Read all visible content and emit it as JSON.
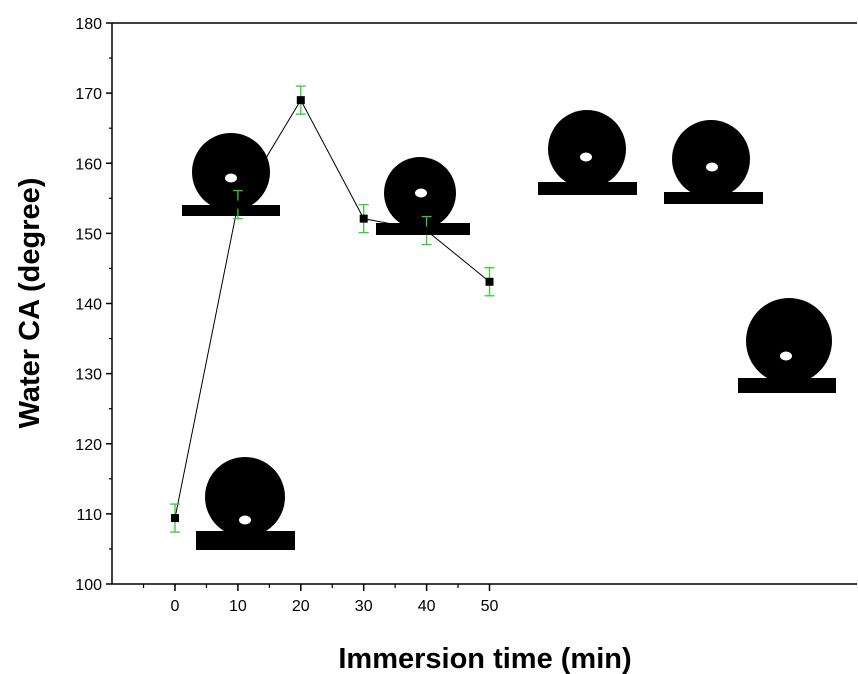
{
  "chart_data": {
    "type": "scatter",
    "title": "",
    "xlabel": "Immersion time (min)",
    "ylabel": "Water CA (degree)",
    "xlim": [
      -10,
      54
    ],
    "ylim": [
      100,
      180
    ],
    "xticks": [
      0,
      10,
      20,
      30,
      40,
      50
    ],
    "yticks": [
      100,
      110,
      120,
      130,
      140,
      150,
      160,
      170,
      180
    ],
    "series": [
      {
        "x": [
          0,
          10,
          20,
          30,
          40,
          50
        ],
        "y": [
          109.4,
          154.1,
          169.0,
          152.1,
          150.4,
          143.1
        ],
        "yerr": [
          2.0,
          2.0,
          2.0,
          2.0,
          2.0,
          2.0
        ],
        "line_color": "#000000",
        "marker": "square",
        "marker_color": "#000000",
        "errorbar_color": "#33cc33"
      }
    ],
    "grid": false,
    "legend": "none",
    "droplet_insets": [
      {
        "near_x": 0,
        "contact_angle_deg": 109.4
      },
      {
        "near_x": 10,
        "contact_angle_deg": 154.1
      },
      {
        "near_x": 20,
        "contact_angle_deg": 169.0
      },
      {
        "near_x": 30,
        "contact_angle_deg": 152.1
      },
      {
        "near_x": 40,
        "contact_angle_deg": 150.4
      },
      {
        "near_x": 50,
        "contact_angle_deg": 143.1
      }
    ]
  }
}
